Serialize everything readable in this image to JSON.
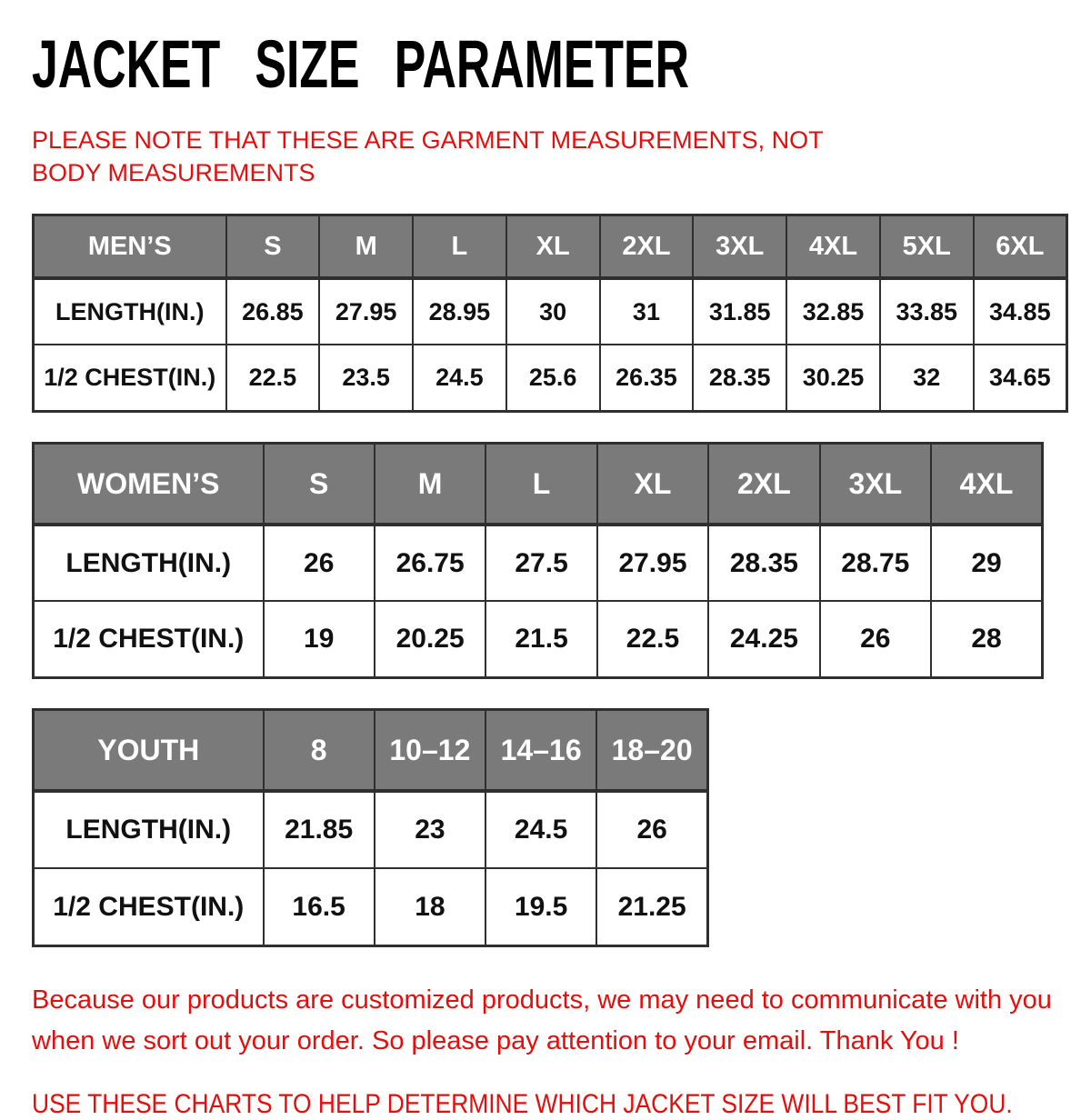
{
  "title": "JACKET SIZE PARAMETER",
  "note": "PLEASE NOTE THAT THESE ARE GARMENT MEASUREMENTS, NOT BODY MEASUREMENTS",
  "colors": {
    "accent_red": "#e60d0d",
    "header_gray": "#7a7a7a",
    "table_border": "#2f2f2f"
  },
  "tables": [
    {
      "id": "men",
      "header": [
        "MEN’S",
        "S",
        "M",
        "L",
        "XL",
        "2XL",
        "3XL",
        "4XL",
        "5XL",
        "6XL"
      ],
      "rows": [
        [
          "LENGTH(IN.)",
          "26.85",
          "27.95",
          "28.95",
          "30",
          "31",
          "31.85",
          "32.85",
          "33.85",
          "34.85"
        ],
        [
          "1/2 CHEST(IN.)",
          "22.5",
          "23.5",
          "24.5",
          "25.6",
          "26.35",
          "28.35",
          "30.25",
          "32",
          "34.65"
        ]
      ]
    },
    {
      "id": "women",
      "header": [
        "WOMEN’S",
        "S",
        "M",
        "L",
        "XL",
        "2XL",
        "3XL",
        "4XL"
      ],
      "rows": [
        [
          "LENGTH(IN.)",
          "26",
          "26.75",
          "27.5",
          "27.95",
          "28.35",
          "28.75",
          "29"
        ],
        [
          "1/2 CHEST(IN.)",
          "19",
          "20.25",
          "21.5",
          "22.5",
          "24.25",
          "26",
          "28"
        ]
      ]
    },
    {
      "id": "youth",
      "header": [
        "YOUTH",
        "8",
        "10–12",
        "14–16",
        "18–20"
      ],
      "rows": [
        [
          "LENGTH(IN.)",
          "21.85",
          "23",
          "24.5",
          "26"
        ],
        [
          "1/2 CHEST(IN.)",
          "16.5",
          "18",
          "19.5",
          "21.25"
        ]
      ]
    }
  ],
  "footer": {
    "paragraph": "Because our products are customized products, we may need to communicate with you when we sort out your order. So please pay attention to your email. Thank You !",
    "advice": "USE THESE CHARTS TO HELP DETERMINE WHICH JACKET SIZE WILL BEST FIT YOU."
  }
}
